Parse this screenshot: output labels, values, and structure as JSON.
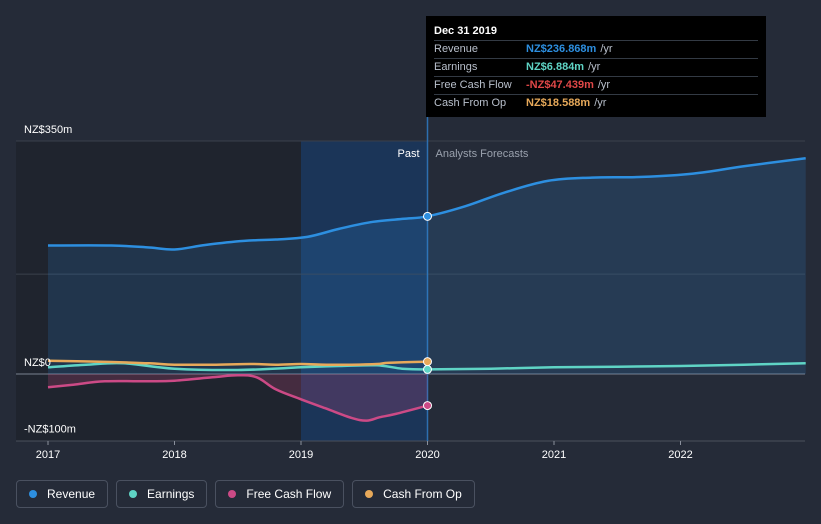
{
  "chart_data": {
    "type": "line",
    "x_ticks": [
      "2017",
      "2018",
      "2019",
      "2020",
      "2021",
      "2022"
    ],
    "y_tick_labels": [
      "NZ$350m",
      "NZ$0",
      "-NZ$100m"
    ],
    "ylim": [
      -100,
      350
    ],
    "xlim": [
      2016.9,
      2022.99
    ],
    "regions": {
      "past_label": "Past",
      "forecast_label": "Analysts Forecasts",
      "divider_x": 2020.0
    },
    "series": [
      {
        "name": "Revenue",
        "color": "#2d8fe0",
        "fill": true,
        "points": [
          [
            2017.0,
            193
          ],
          [
            2017.5,
            193
          ],
          [
            2017.8,
            190
          ],
          [
            2018.0,
            187
          ],
          [
            2018.25,
            194
          ],
          [
            2018.55,
            200
          ],
          [
            2018.8,
            202
          ],
          [
            2019.05,
            206
          ],
          [
            2019.3,
            218
          ],
          [
            2019.55,
            228
          ],
          [
            2019.8,
            233
          ],
          [
            2020.0,
            236.868
          ],
          [
            2020.3,
            252
          ],
          [
            2020.6,
            272
          ],
          [
            2020.95,
            290
          ],
          [
            2021.3,
            295
          ],
          [
            2021.7,
            296
          ],
          [
            2022.1,
            301
          ],
          [
            2022.5,
            312
          ],
          [
            2022.99,
            324
          ]
        ]
      },
      {
        "name": "Earnings",
        "color": "#5fd4c5",
        "fill": false,
        "points": [
          [
            2017.0,
            10
          ],
          [
            2017.3,
            14
          ],
          [
            2017.6,
            16
          ],
          [
            2018.0,
            8
          ],
          [
            2018.5,
            6
          ],
          [
            2019.0,
            10
          ],
          [
            2019.3,
            12
          ],
          [
            2019.6,
            13
          ],
          [
            2019.8,
            8
          ],
          [
            2020.0,
            6.884
          ],
          [
            2020.5,
            8
          ],
          [
            2021.0,
            10
          ],
          [
            2021.5,
            11
          ],
          [
            2022.0,
            12
          ],
          [
            2022.5,
            14
          ],
          [
            2022.99,
            16
          ]
        ]
      },
      {
        "name": "Free Cash Flow",
        "color": "#cc4a86",
        "fill": true,
        "points": [
          [
            2017.0,
            -20
          ],
          [
            2017.2,
            -16
          ],
          [
            2017.45,
            -11
          ],
          [
            2017.8,
            -11
          ],
          [
            2018.0,
            -10
          ],
          [
            2018.3,
            -5
          ],
          [
            2018.5,
            -2
          ],
          [
            2018.65,
            -5
          ],
          [
            2018.8,
            -23
          ],
          [
            2019.0,
            -38
          ],
          [
            2019.2,
            -52
          ],
          [
            2019.4,
            -66
          ],
          [
            2019.52,
            -70
          ],
          [
            2019.62,
            -65
          ],
          [
            2019.75,
            -60
          ],
          [
            2020.0,
            -47.439
          ]
        ]
      },
      {
        "name": "Cash From Op",
        "color": "#e7a95a",
        "fill": false,
        "points": [
          [
            2017.0,
            20
          ],
          [
            2017.5,
            18
          ],
          [
            2017.8,
            16
          ],
          [
            2018.0,
            14
          ],
          [
            2018.3,
            14
          ],
          [
            2018.6,
            15
          ],
          [
            2018.8,
            14
          ],
          [
            2019.0,
            15
          ],
          [
            2019.2,
            14
          ],
          [
            2019.4,
            14
          ],
          [
            2019.6,
            15
          ],
          [
            2019.7,
            17
          ],
          [
            2020.0,
            18.588
          ]
        ]
      }
    ],
    "tooltip": {
      "title": "Dec 31 2019",
      "rows": [
        {
          "label": "Revenue",
          "value": "NZ$236.868m",
          "unit": "/yr",
          "color": "#2d8fe0"
        },
        {
          "label": "Earnings",
          "value": "NZ$6.884m",
          "unit": "/yr",
          "color": "#5fd4c5"
        },
        {
          "label": "Free Cash Flow",
          "value": "-NZ$47.439m",
          "unit": "/yr",
          "color": "#e04848"
        },
        {
          "label": "Cash From Op",
          "value": "NZ$18.588m",
          "unit": "/yr",
          "color": "#e7a95a"
        }
      ]
    },
    "legend": [
      {
        "name": "Revenue",
        "color": "#2d8fe0"
      },
      {
        "name": "Earnings",
        "color": "#5fd4c5"
      },
      {
        "name": "Free Cash Flow",
        "color": "#cc4a86"
      },
      {
        "name": "Cash From Op",
        "color": "#e7a95a"
      }
    ]
  }
}
